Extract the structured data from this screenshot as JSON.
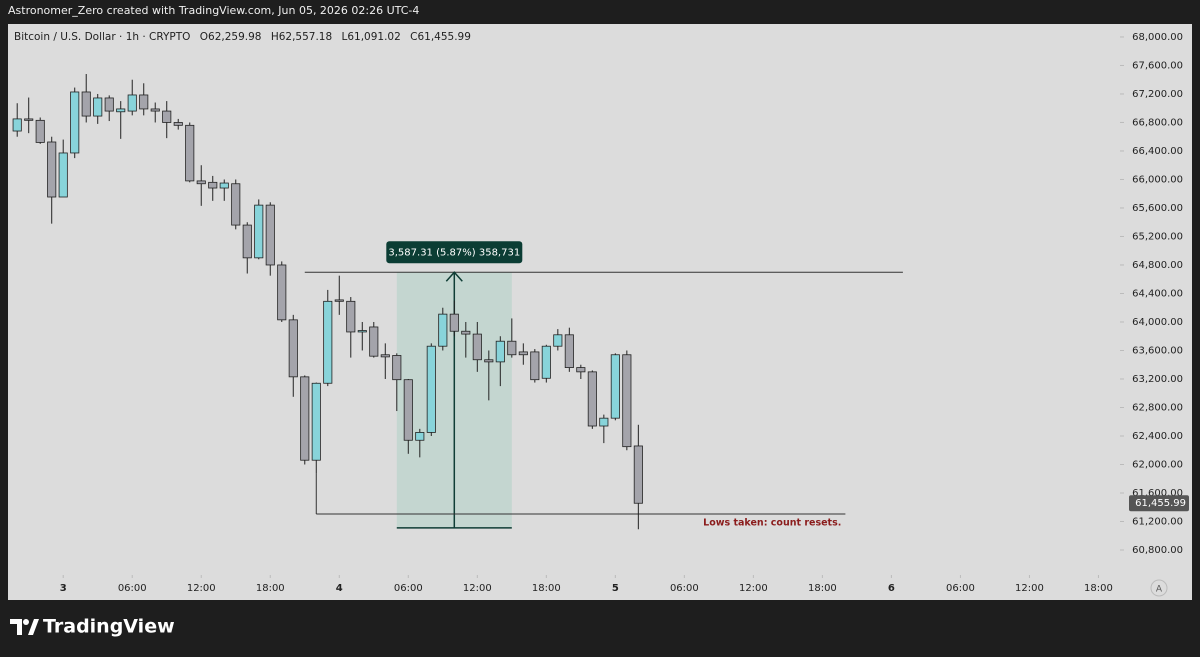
{
  "header": {
    "credit": "Astronomer_Zero created with TradingView.com, Jun 05, 2026 02:26 UTC-4"
  },
  "footer": {
    "brand": "TradingView"
  },
  "ui": {
    "auto_scale": "A"
  },
  "chart_data": {
    "type": "candlestick",
    "symbol": "Bitcoin / U.S. Dollar · 1h · CRYPTO",
    "ohlc_legend": [
      "O62,259.98",
      "H62,557.18",
      "L61,091.02",
      "C61,455.99"
    ],
    "x": [
      -4,
      -3,
      -2,
      -1,
      0,
      1,
      2,
      3,
      4,
      5,
      6,
      7,
      8,
      9,
      10,
      11,
      12,
      13,
      14,
      15,
      16,
      17,
      18,
      19,
      20,
      21,
      22,
      23,
      24,
      25,
      26,
      27,
      28,
      29,
      30,
      31,
      32,
      33,
      34,
      35,
      36,
      37,
      38,
      39,
      40,
      41,
      42,
      43,
      44,
      45,
      46,
      47,
      48,
      49,
      50
    ],
    "open": [
      66680,
      66850,
      66830,
      66526,
      65754,
      66372,
      67228,
      66890,
      67144,
      66950,
      66960,
      67186,
      66990,
      66960,
      66800,
      66760,
      65980,
      65960,
      65880,
      65940,
      65360,
      64900,
      65640,
      64800,
      64030,
      63230,
      62060,
      63140,
      64310,
      64290,
      63860,
      63930,
      63540,
      63530,
      63190,
      62340,
      62450,
      63660,
      64110,
      63870,
      63830,
      63470,
      63440,
      63730,
      63580,
      63580,
      63210,
      63660,
      63820,
      63360,
      63300,
      62540,
      62650,
      63540,
      62259.98
    ],
    "high": [
      67070,
      67150,
      66870,
      66600,
      66560,
      67290,
      67480,
      67200,
      67180,
      67100,
      67400,
      67350,
      67080,
      67100,
      66850,
      66800,
      66200,
      66050,
      66000,
      66000,
      65400,
      65720,
      65680,
      64850,
      64100,
      63250,
      63150,
      64450,
      64650,
      64350,
      64000,
      64000,
      63700,
      63560,
      63200,
      62500,
      63700,
      64200,
      64300,
      64000,
      64000,
      63600,
      63800,
      64050,
      63700,
      63620,
      63680,
      63900,
      63920,
      63400,
      63320,
      62700,
      63560,
      63600,
      62557.18
    ],
    "low": [
      66600,
      66650,
      66500,
      65380,
      65754,
      66300,
      66800,
      66780,
      66820,
      66570,
      66900,
      66900,
      66800,
      66580,
      66700,
      65960,
      65630,
      65700,
      65700,
      65300,
      64680,
      64880,
      64650,
      64000,
      62950,
      62000,
      61880,
      63100,
      64100,
      63500,
      63600,
      63500,
      63200,
      62750,
      62150,
      62100,
      62400,
      63600,
      63800,
      63500,
      63300,
      62900,
      63100,
      63500,
      63400,
      63150,
      63150,
      63600,
      63300,
      63200,
      62500,
      62300,
      62620,
      62200,
      61091.02
    ],
    "close": [
      66850,
      66830,
      66520,
      65754,
      66372,
      67228,
      66890,
      67144,
      66960,
      66990,
      67186,
      66990,
      66960,
      66800,
      66760,
      65980,
      65940,
      65880,
      65950,
      65360,
      64900,
      65640,
      64800,
      64030,
      63230,
      62060,
      63140,
      64290,
      64290,
      63860,
      63880,
      63520,
      63510,
      63190,
      62340,
      62450,
      63660,
      64110,
      63870,
      63830,
      63470,
      63440,
      63730,
      63540,
      63540,
      63190,
      63660,
      63820,
      63360,
      63300,
      62540,
      62650,
      63540,
      62250,
      61455.99
    ],
    "up_color": "#88d4da",
    "down_color": "#a4a4ab",
    "outline_color": "#222222",
    "xlim": [
      -4.8,
      91.7
    ],
    "ylim": [
      60449,
      68182
    ],
    "xticks": [
      {
        "value": 0,
        "label": "3"
      },
      {
        "value": 6,
        "label": "06:00"
      },
      {
        "value": 12,
        "label": "12:00"
      },
      {
        "value": 18,
        "label": "18:00"
      },
      {
        "value": 24,
        "label": "4"
      },
      {
        "value": 30,
        "label": "06:00"
      },
      {
        "value": 36,
        "label": "12:00"
      },
      {
        "value": 42,
        "label": "18:00"
      },
      {
        "value": 48,
        "label": "5"
      },
      {
        "value": 54,
        "label": "06:00"
      },
      {
        "value": 60,
        "label": "12:00"
      },
      {
        "value": 66,
        "label": "18:00"
      },
      {
        "value": 72,
        "label": "6"
      },
      {
        "value": 78,
        "label": "06:00"
      },
      {
        "value": 84,
        "label": "12:00"
      },
      {
        "value": 90,
        "label": "18:00"
      }
    ],
    "yticks": [
      {
        "value": 60800,
        "label": "60,800.00"
      },
      {
        "value": 61200,
        "label": "61,200.00"
      },
      {
        "value": 61600,
        "label": "61,600.00"
      },
      {
        "value": 62000,
        "label": "62,000.00"
      },
      {
        "value": 62400,
        "label": "62,400.00"
      },
      {
        "value": 62800,
        "label": "62,800.00"
      },
      {
        "value": 63200,
        "label": "63,200.00"
      },
      {
        "value": 63600,
        "label": "63,600.00"
      },
      {
        "value": 64000,
        "label": "64,000.00"
      },
      {
        "value": 64400,
        "label": "64,400.00"
      },
      {
        "value": 64800,
        "label": "64,800.00"
      },
      {
        "value": 65200,
        "label": "65,200.00"
      },
      {
        "value": 65600,
        "label": "65,600.00"
      },
      {
        "value": 66000,
        "label": "66,000.00"
      },
      {
        "value": 66400,
        "label": "66,400.00"
      },
      {
        "value": 66800,
        "label": "66,800.00"
      },
      {
        "value": 67200,
        "label": "67,200.00"
      },
      {
        "value": 67600,
        "label": "67,600.00"
      },
      {
        "value": 68000,
        "label": "68,000.00"
      }
    ],
    "last_price": {
      "value": 61455.99,
      "label": "61,455.99"
    },
    "measure": {
      "x": [
        29,
        39
      ],
      "y": [
        61110,
        64697.31
      ],
      "label": "3,587.31 (5.87%) 358,731",
      "line_x": [
        21,
        73
      ]
    },
    "low_line": {
      "x": [
        22,
        68
      ],
      "y": 61305,
      "label": "Lows taken: count resets."
    }
  }
}
